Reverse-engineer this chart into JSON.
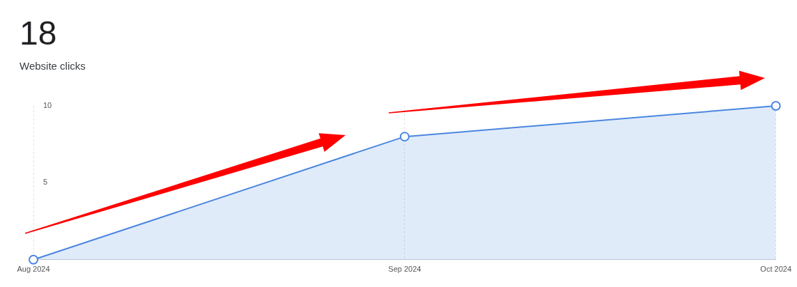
{
  "chart_data": {
    "type": "area",
    "title": "18",
    "subtitle": "Website clicks",
    "categories": [
      "Aug 2024",
      "Sep 2024",
      "Oct 2024"
    ],
    "series": [
      {
        "color": "#4a86e0",
        "values": [
          0,
          8,
          10
        ]
      }
    ],
    "ylim": [
      0,
      10
    ],
    "yticks": [
      5,
      10
    ],
    "grid": "x",
    "marker": "circle",
    "legend": false
  }
}
